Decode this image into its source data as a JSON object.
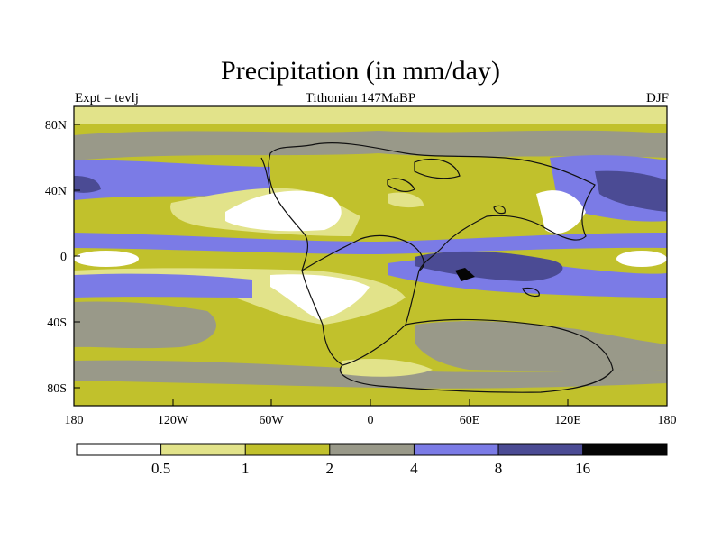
{
  "title": "Precipitation (in mm/day)",
  "experiment": "Expt = tevlj",
  "subtitle": "Tithonian 147MaBP",
  "season": "DJF",
  "x_ticks": [
    "180",
    "120W",
    "60W",
    "0",
    "60E",
    "120E",
    "180"
  ],
  "y_ticks": [
    "80N",
    "40N",
    "0",
    "40S",
    "80S"
  ],
  "legend": {
    "levels": [
      "0.5",
      "1",
      "2",
      "4",
      "8",
      "16"
    ],
    "colors": [
      "#ffffff",
      "#e2e38a",
      "#c1c12c",
      "#999989",
      "#7b7be6",
      "#4b4b94",
      "#050505"
    ]
  }
}
